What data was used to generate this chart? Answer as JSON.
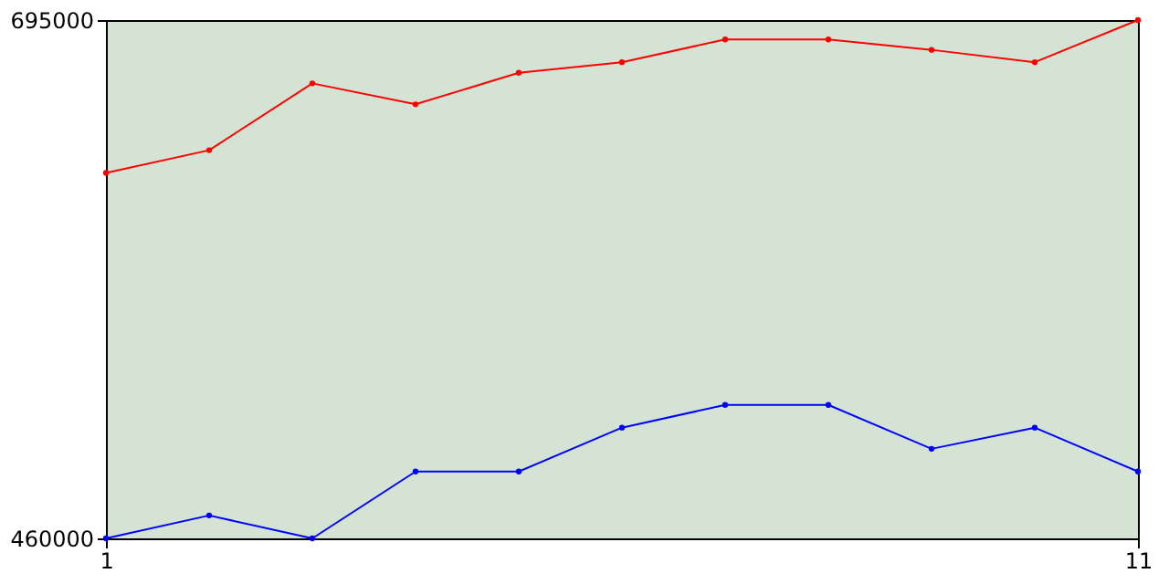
{
  "chart_data": {
    "type": "line",
    "x": [
      1,
      2,
      3,
      4,
      5,
      6,
      7,
      8,
      9,
      10,
      11
    ],
    "series": [
      {
        "color": "#ff0000",
        "values": [
          625700,
          636000,
          666300,
          656800,
          671100,
          675900,
          686200,
          686200,
          681500,
          675900,
          695000
        ]
      },
      {
        "color": "#0000ff",
        "values": [
          460000,
          470400,
          460000,
          490300,
          490300,
          510200,
          520500,
          520500,
          500600,
          510200,
          490300
        ]
      }
    ],
    "xlim": [
      1,
      11
    ],
    "xticks": [
      1,
      11
    ],
    "ylim": [
      460000,
      695000
    ],
    "yticks": [
      460000,
      695000
    ],
    "grid": false,
    "legend": false,
    "marker": "circle",
    "line_style": "solid"
  }
}
